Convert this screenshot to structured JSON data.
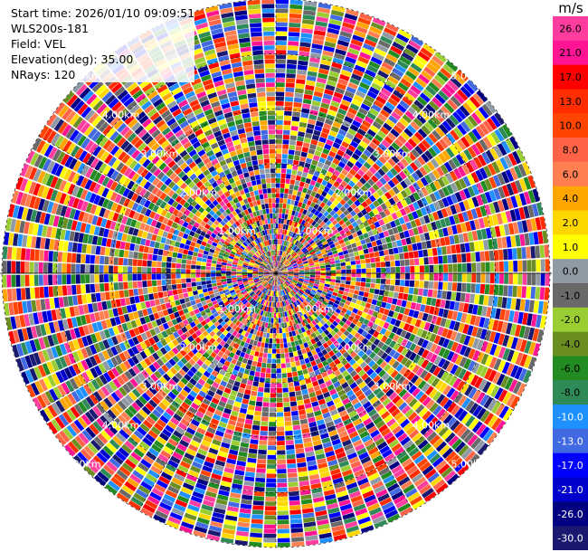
{
  "info": {
    "start_time": "Start time: 2026/01/10 09:09:51",
    "instrument": "WLS200s-181",
    "field": "Field: VEL",
    "elevation": "Elevation(deg): 35.00",
    "nrays": "NRays: 120"
  },
  "colorbar": {
    "unit": "m/s",
    "ticks": [
      "26.0",
      "21.0",
      "17.0",
      "13.0",
      "10.0",
      "8.0",
      "6.0",
      "4.0",
      "2.0",
      "1.0",
      "0.0",
      "-1.0",
      "-2.0",
      "-4.0",
      "-6.0",
      "-8.0",
      "-10.0",
      "-13.0",
      "-17.0",
      "-21.0",
      "-26.0",
      "-30.0"
    ],
    "colors": [
      "#ff3d9e",
      "#ff1493",
      "#ff0000",
      "#ff2d00",
      "#ff4500",
      "#ff6347",
      "#ff7f50",
      "#ffa500",
      "#ffd700",
      "#ffff00",
      "#8f9aa5",
      "#696969",
      "#9acd32",
      "#6b8e23",
      "#228b22",
      "#2e8b57",
      "#1e90ff",
      "#4169e1",
      "#0000ff",
      "#0000cd",
      "#000080",
      "#191970"
    ]
  },
  "chart_data": {
    "type": "heatmap",
    "plot_style": "polar PPI",
    "field": "VEL",
    "units": "m/s",
    "nrays": 120,
    "vmin": -30.0,
    "vmax": 26.0,
    "range_rings": [
      {
        "label": "1.00km",
        "km": 1.0
      },
      {
        "label": "2.00km",
        "km": 2.0
      },
      {
        "label": "3.00km",
        "km": 3.0
      },
      {
        "label": "4.00km",
        "km": 4.0
      },
      {
        "label": "5.00km",
        "km": 5.0
      }
    ],
    "max_range_km": 5.0,
    "grid": true
  }
}
